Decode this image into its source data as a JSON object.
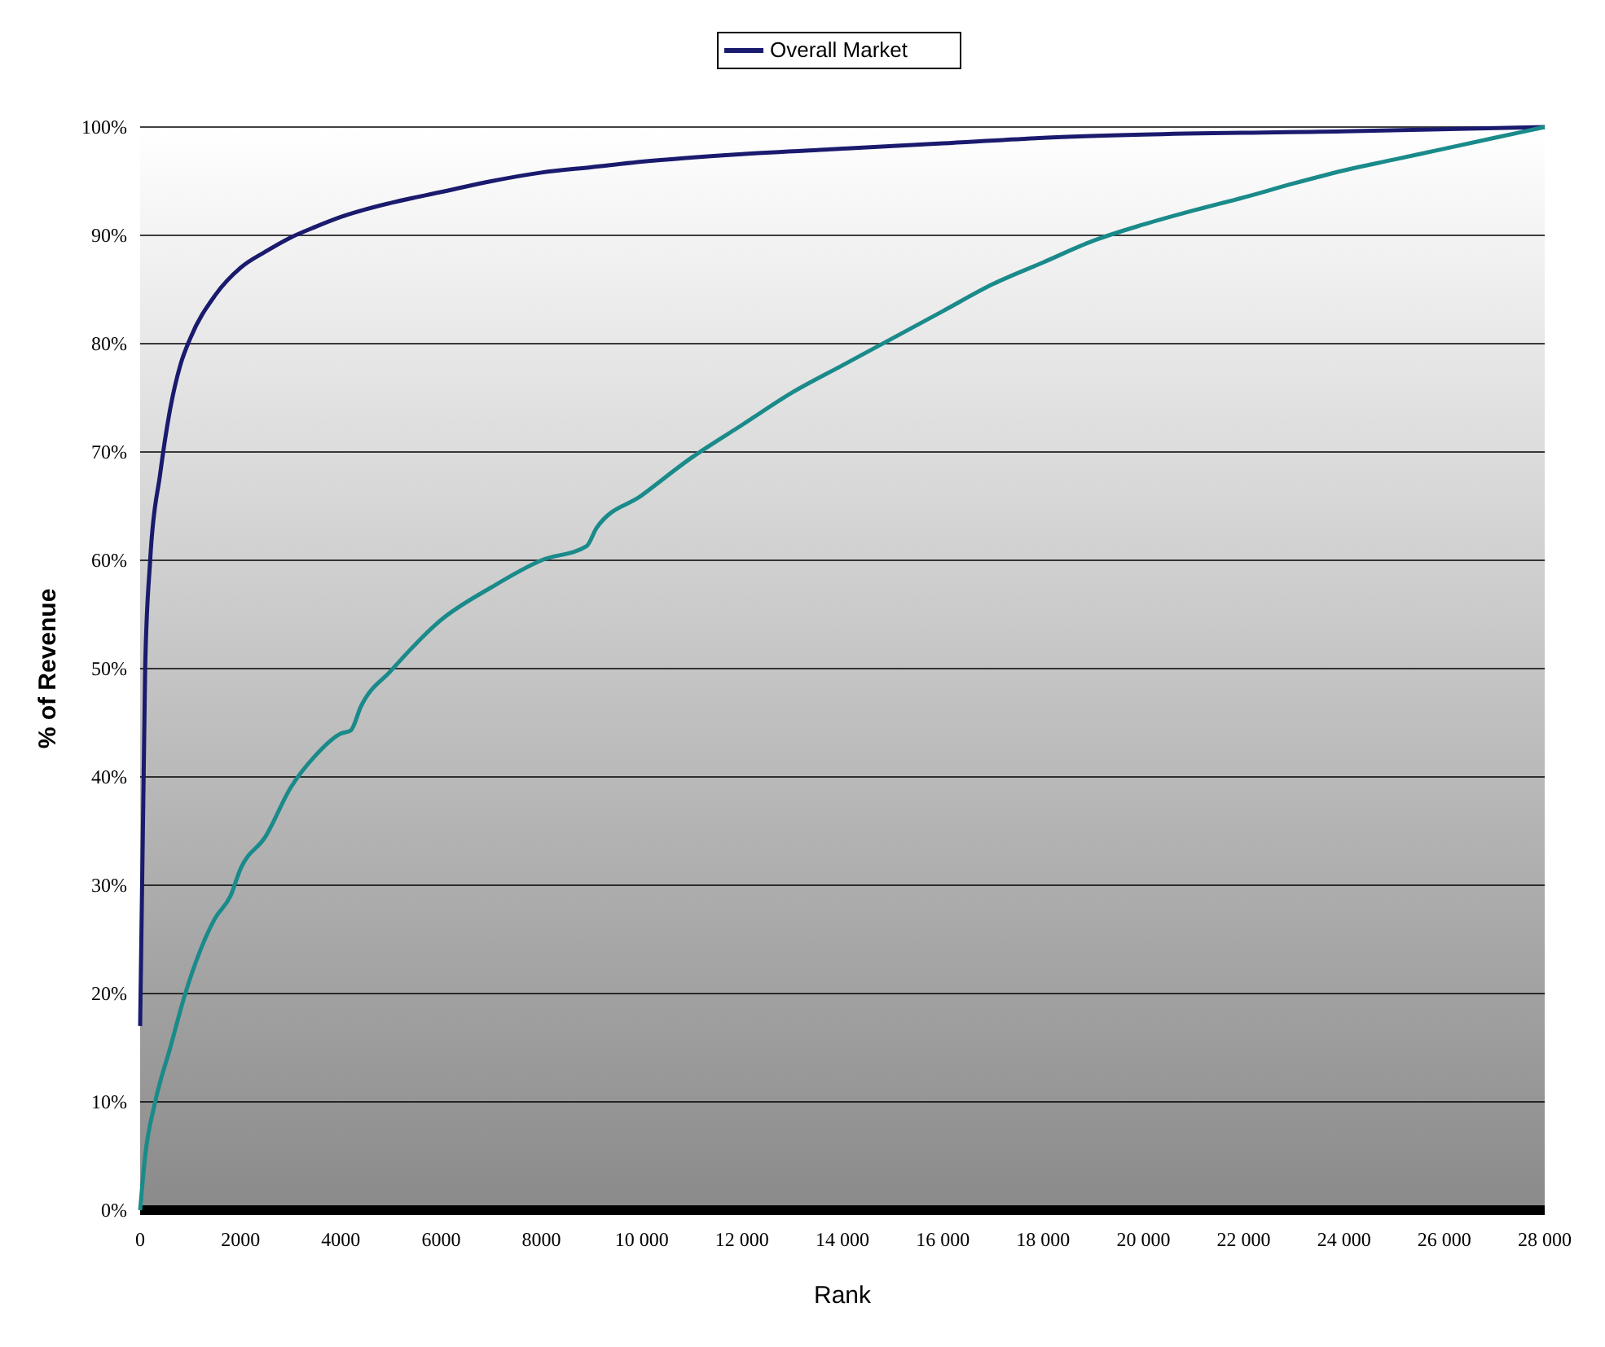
{
  "chart_data": {
    "type": "line",
    "xlabel": "Rank",
    "ylabel": "% of Revenue",
    "xlim": [
      0,
      28000
    ],
    "ylim": [
      0,
      100
    ],
    "xticks": [
      0,
      {
        "value": 2000,
        "label": "2000"
      },
      {
        "value": 4000,
        "label": "4000"
      },
      {
        "value": 6000,
        "label": "6000"
      },
      {
        "value": 8000,
        "label": "8000"
      },
      {
        "value": 10000,
        "label": "10 000"
      },
      {
        "value": 12000,
        "label": "12 000"
      },
      {
        "value": 14000,
        "label": "14 000"
      },
      {
        "value": 16000,
        "label": "16 000"
      },
      {
        "value": 18000,
        "label": "18 000"
      },
      {
        "value": 20000,
        "label": "20 000"
      },
      {
        "value": 22000,
        "label": "22 000"
      },
      {
        "value": 24000,
        "label": "24 000"
      },
      {
        "value": 26000,
        "label": "26 000"
      },
      {
        "value": 28000,
        "label": "28 000"
      }
    ],
    "yticks": [
      {
        "value": 0,
        "label": "0%"
      },
      {
        "value": 10,
        "label": "10%"
      },
      {
        "value": 20,
        "label": "20%"
      },
      {
        "value": 30,
        "label": "30%"
      },
      {
        "value": 40,
        "label": "40%"
      },
      {
        "value": 50,
        "label": "50%"
      },
      {
        "value": 60,
        "label": "60%"
      },
      {
        "value": 70,
        "label": "70%"
      },
      {
        "value": 80,
        "label": "80%"
      },
      {
        "value": 90,
        "label": "90%"
      },
      {
        "value": 100,
        "label": "100%"
      }
    ],
    "grid": "y",
    "legend": "top",
    "line_style": "solid",
    "series": [
      {
        "name": "Overall Market",
        "color": "#1a1a6e",
        "x": [
          0,
          100,
          200,
          400,
          600,
          800,
          1000,
          1500,
          2000,
          2500,
          3000,
          3500,
          4000,
          5000,
          6000,
          7000,
          8000,
          9000,
          10000,
          12000,
          14000,
          16000,
          18000,
          20000,
          24000,
          28000
        ],
        "values": [
          17,
          50,
          60,
          68,
          74,
          78,
          80.5,
          84.5,
          87,
          88.5,
          89.8,
          90.8,
          91.7,
          93,
          94,
          95,
          95.8,
          96.3,
          96.8,
          97.5,
          98,
          98.5,
          99,
          99.3,
          99.6,
          100
        ]
      },
      {
        "color": "#1a8a8a",
        "x": [
          0,
          100,
          300,
          600,
          900,
          1200,
          1500,
          1800,
          2000,
          2500,
          3000,
          3500,
          4000,
          4200,
          4400,
          5000,
          6000,
          7000,
          8000,
          8900,
          9100,
          10000,
          11000,
          12000,
          13000,
          14000,
          15000,
          16000,
          17000,
          18000,
          19000,
          20000,
          21000,
          22000,
          23000,
          24000,
          25000,
          26000,
          27000,
          28000
        ],
        "values": [
          0,
          5,
          10,
          15,
          20,
          24,
          27,
          29,
          31.5,
          34.5,
          39,
          42,
          44,
          44.3,
          46.5,
          49.8,
          54.5,
          57.5,
          60,
          61.3,
          63,
          66,
          69.5,
          72.5,
          75.5,
          78,
          80.5,
          83,
          85.5,
          87.5,
          89.5,
          91,
          92.3,
          93.5,
          94.8,
          96,
          97,
          98,
          99,
          100
        ]
      }
    ]
  }
}
